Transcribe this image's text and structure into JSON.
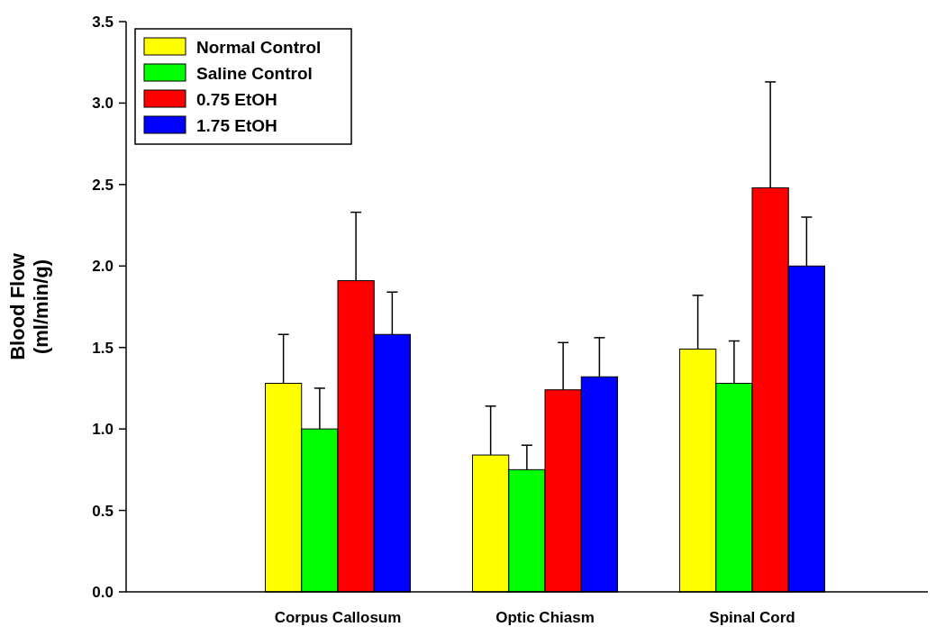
{
  "chart_data": {
    "type": "bar",
    "ylabel": "Blood Flow\n(ml/min/g)",
    "categories": [
      "Corpus Callosum",
      "Optic Chiasm",
      "Spinal Cord"
    ],
    "series": [
      {
        "name": "Normal Control",
        "color": "#ffff00",
        "values": [
          1.28,
          0.84,
          1.49
        ],
        "errors": [
          0.3,
          0.3,
          0.33
        ]
      },
      {
        "name": "Saline Control",
        "color": "#00ff00",
        "values": [
          1.0,
          0.75,
          1.28
        ],
        "errors": [
          0.25,
          0.15,
          0.26
        ]
      },
      {
        "name": "0.75 EtOH",
        "color": "#ff0000",
        "values": [
          1.91,
          1.24,
          2.48
        ],
        "errors": [
          0.42,
          0.29,
          0.65
        ]
      },
      {
        "name": "1.75 EtOH",
        "color": "#0000ff",
        "values": [
          1.58,
          1.32,
          2.0
        ],
        "errors": [
          0.26,
          0.24,
          0.3
        ]
      }
    ],
    "ylim": [
      0,
      3.5
    ],
    "yticks": [
      {
        "value": 0,
        "label": "0.0"
      },
      {
        "value": 0.5,
        "label": "0.5"
      },
      {
        "value": 1,
        "label": "1.0"
      },
      {
        "value": 1.5,
        "label": "1.5"
      },
      {
        "value": 2,
        "label": "2.0"
      },
      {
        "value": 2.5,
        "label": "2.5"
      },
      {
        "value": 3,
        "label": "3.0"
      },
      {
        "value": 3.5,
        "label": "3.5"
      }
    ],
    "legend": "top left",
    "grid": false
  }
}
